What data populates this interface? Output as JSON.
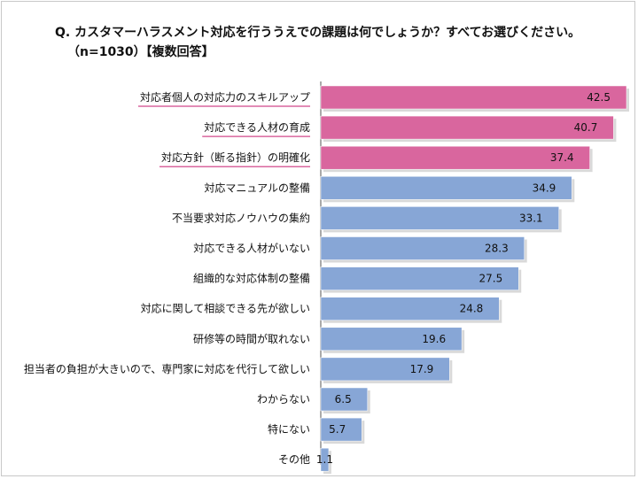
{
  "title": "Q. カスタマーハラスメント対応を行ううえでの課題は何でしょうか？すべてお選びください。",
  "subtitle": "（n=1030）【複数回答】",
  "chart_data": {
    "type": "bar",
    "orientation": "horizontal",
    "title": "Q. カスタマーハラスメント対応を行ううえでの課題は何でしょうか？すべてお選びください。",
    "subtitle": "（n=1030）【複数回答】",
    "categories": [
      "対応者個人の対応力のスキルアップ",
      "対応できる人材の育成",
      "対応方針（断る指針）の明確化",
      "対応マニュアルの整備",
      "不当要求対応ノウハウの集約",
      "対応できる人材がいない",
      "組織的な対応体制の整備",
      "対応に関して相談できる先が欲しい",
      "研修等の時間が取れない",
      "担当者の負担が大きいので、専門家に対応を代行して欲しい",
      "わからない",
      "特にない",
      "その他"
    ],
    "values": [
      42.5,
      40.7,
      37.4,
      34.9,
      33.1,
      28.3,
      27.5,
      24.8,
      19.6,
      17.9,
      6.5,
      5.7,
      1.1
    ],
    "value_labels": [
      "42.5",
      "40.7",
      "37.4",
      "34.9",
      "33.1",
      "28.3",
      "27.5",
      "24.8",
      "19.6",
      "17.9",
      "6.5",
      "5.7",
      "1.1"
    ],
    "highlighted": [
      true,
      true,
      true,
      false,
      false,
      false,
      false,
      false,
      false,
      false,
      false,
      false,
      false
    ],
    "xlim": [
      0,
      42.5
    ],
    "xlabel": "",
    "ylabel": "",
    "grid": false,
    "colors": {
      "highlight": "#d9669e",
      "normal": "#87a6d6",
      "underline": "#d9669e",
      "axis": "#555555"
    }
  }
}
